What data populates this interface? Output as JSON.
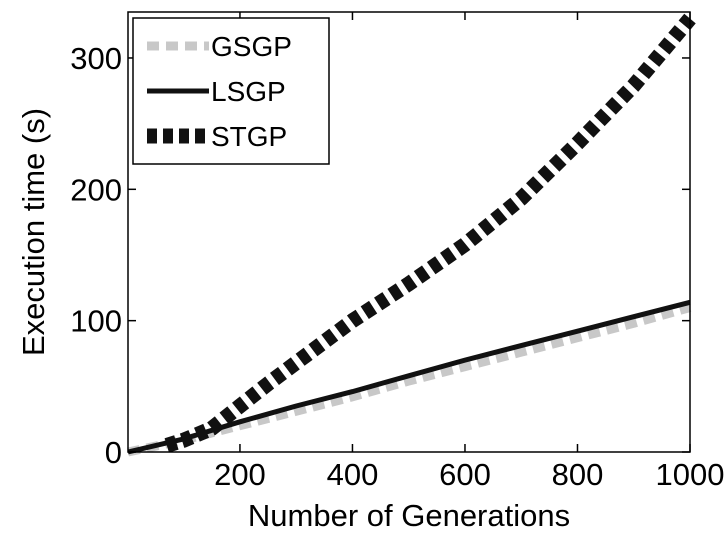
{
  "chart_data": {
    "type": "line",
    "xlabel": "Number of Generations",
    "ylabel": "Execution time (s)",
    "xlim": [
      1,
      1000
    ],
    "ylim": [
      0,
      335
    ],
    "xticks": [
      200,
      400,
      600,
      800,
      1000
    ],
    "yticks": [
      0,
      100,
      200,
      300
    ],
    "grid": false,
    "legend_position": "top-left",
    "series": [
      {
        "name": "GSGP",
        "color": "#c8c8c8",
        "style": "dashed",
        "x": [
          1,
          100,
          200,
          300,
          400,
          500,
          600,
          700,
          800,
          900,
          1000
        ],
        "y": [
          0,
          9,
          20,
          31,
          42,
          54,
          65,
          76,
          87,
          98,
          110
        ]
      },
      {
        "name": "LSGP",
        "color": "#111111",
        "style": "solid",
        "x": [
          1,
          100,
          200,
          300,
          400,
          500,
          600,
          700,
          800,
          900,
          1000
        ],
        "y": [
          0,
          10,
          23,
          35,
          46,
          58,
          70,
          81,
          92,
          103,
          114
        ]
      },
      {
        "name": "STGP",
        "color": "#111111",
        "style": "thick-dashed",
        "x": [
          70,
          100,
          150,
          200,
          250,
          300,
          400,
          500,
          600,
          700,
          800,
          900,
          1000
        ],
        "y": [
          5,
          9,
          18,
          35,
          52,
          68,
          100,
          128,
          158,
          193,
          235,
          279,
          330
        ]
      }
    ]
  }
}
